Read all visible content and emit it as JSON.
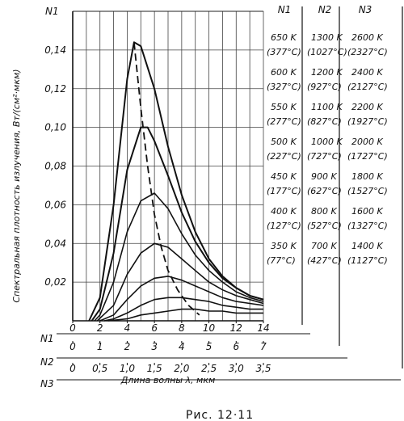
{
  "chart_data": {
    "type": "line",
    "caption": "Рис. 12·11",
    "xlabel": "Длина волны λ, мкм",
    "ylabel": "Спектральная плотность излучения, Вт/(см²·мкм)",
    "y_axis_name": "N1",
    "ylim": [
      0,
      0.16
    ],
    "yticks": [
      "0,02",
      "0,04",
      "0,06",
      "0,08",
      "0,10",
      "0,12",
      "0,14"
    ],
    "xlim": [
      0,
      14
    ],
    "x_axes": [
      {
        "name": "N1",
        "ticks": [
          "0",
          "2",
          "4",
          "6",
          "8",
          "10",
          "12",
          "14"
        ]
      },
      {
        "name": "N2",
        "ticks": [
          "0",
          "1",
          "2",
          "3",
          "4",
          "5",
          "6",
          "7"
        ]
      },
      {
        "name": "N3",
        "ticks": [
          "0",
          "0,5",
          "1,0",
          "1,5",
          "2,0",
          "2,5",
          "3,0",
          "3,5"
        ]
      }
    ],
    "table_headers": [
      "N1",
      "N2",
      "N3"
    ],
    "temperature_rows": [
      [
        [
          "650 K",
          "(377°C)"
        ],
        [
          "1300 K",
          "(1027°C)"
        ],
        [
          "2600 K",
          "(2327°C)"
        ]
      ],
      [
        [
          "600 K",
          "(327°C)"
        ],
        [
          "1200 K",
          "(927°C)"
        ],
        [
          "2400 K",
          "(2127°C)"
        ]
      ],
      [
        [
          "550 K",
          "(277°C)"
        ],
        [
          "1100 K",
          "(827°C)"
        ],
        [
          "2200 K",
          "(1927°C)"
        ]
      ],
      [
        [
          "500 K",
          "(227°C)"
        ],
        [
          "1000 K",
          "(727°C)"
        ],
        [
          "2000 K",
          "(1727°C)"
        ]
      ],
      [
        [
          "450 K",
          "(177°C)"
        ],
        [
          "900 K",
          "(627°C)"
        ],
        [
          "1800 K",
          "(1527°C)"
        ]
      ],
      [
        [
          "400 K",
          "(127°C)"
        ],
        [
          "800 K",
          "(527°C)"
        ],
        [
          "1600 K",
          "(1327°C)"
        ]
      ],
      [
        [
          "350 K",
          "(77°C)"
        ],
        [
          "700 K",
          "(427°C)"
        ],
        [
          "1400 K",
          "(1127°C)"
        ]
      ]
    ],
    "series": [
      {
        "points": [
          [
            1.2,
            0
          ],
          [
            2,
            0.012
          ],
          [
            3,
            0.06
          ],
          [
            4,
            0.125
          ],
          [
            4.5,
            0.144
          ],
          [
            5,
            0.142
          ],
          [
            6,
            0.12
          ],
          [
            7,
            0.09
          ],
          [
            8,
            0.065
          ],
          [
            9,
            0.046
          ],
          [
            10,
            0.032
          ],
          [
            11,
            0.023
          ],
          [
            12,
            0.017
          ],
          [
            13,
            0.013
          ],
          [
            14,
            0.011
          ]
        ]
      },
      {
        "points": [
          [
            1.4,
            0
          ],
          [
            2,
            0.006
          ],
          [
            3,
            0.035
          ],
          [
            4,
            0.078
          ],
          [
            5,
            0.1
          ],
          [
            5.5,
            0.1
          ],
          [
            6,
            0.093
          ],
          [
            7,
            0.075
          ],
          [
            8,
            0.056
          ],
          [
            9,
            0.041
          ],
          [
            10,
            0.03
          ],
          [
            11,
            0.022
          ],
          [
            12,
            0.017
          ],
          [
            13,
            0.013
          ],
          [
            14,
            0.011
          ]
        ]
      },
      {
        "points": [
          [
            1.6,
            0
          ],
          [
            2,
            0.003
          ],
          [
            3,
            0.02
          ],
          [
            4,
            0.046
          ],
          [
            5,
            0.062
          ],
          [
            6,
            0.066
          ],
          [
            7,
            0.058
          ],
          [
            8,
            0.045
          ],
          [
            9,
            0.034
          ],
          [
            10,
            0.026
          ],
          [
            11,
            0.02
          ],
          [
            12,
            0.015
          ],
          [
            13,
            0.012
          ],
          [
            14,
            0.01
          ]
        ]
      },
      {
        "points": [
          [
            1.8,
            0
          ],
          [
            3,
            0.008
          ],
          [
            4,
            0.024
          ],
          [
            5,
            0.035
          ],
          [
            6,
            0.04
          ],
          [
            7,
            0.038
          ],
          [
            8,
            0.032
          ],
          [
            9,
            0.026
          ],
          [
            10,
            0.02
          ],
          [
            11,
            0.016
          ],
          [
            12,
            0.013
          ],
          [
            13,
            0.011
          ],
          [
            14,
            0.009
          ]
        ]
      },
      {
        "points": [
          [
            2,
            0
          ],
          [
            3,
            0.003
          ],
          [
            4,
            0.011
          ],
          [
            5,
            0.018
          ],
          [
            6,
            0.022
          ],
          [
            7,
            0.023
          ],
          [
            8,
            0.021
          ],
          [
            9,
            0.018
          ],
          [
            10,
            0.015
          ],
          [
            11,
            0.012
          ],
          [
            12,
            0.01
          ],
          [
            13,
            0.009
          ],
          [
            14,
            0.008
          ]
        ]
      },
      {
        "points": [
          [
            2.3,
            0
          ],
          [
            3,
            0.001
          ],
          [
            4,
            0.004
          ],
          [
            5,
            0.008
          ],
          [
            6,
            0.011
          ],
          [
            7,
            0.012
          ],
          [
            8,
            0.012
          ],
          [
            9,
            0.011
          ],
          [
            10,
            0.01
          ],
          [
            11,
            0.008
          ],
          [
            12,
            0.007
          ],
          [
            13,
            0.006
          ],
          [
            14,
            0.006
          ]
        ]
      },
      {
        "points": [
          [
            2.6,
            0
          ],
          [
            4,
            0.001
          ],
          [
            5,
            0.003
          ],
          [
            6,
            0.004
          ],
          [
            7,
            0.005
          ],
          [
            8,
            0.006
          ],
          [
            9,
            0.006
          ],
          [
            10,
            0.005
          ],
          [
            11,
            0.005
          ],
          [
            12,
            0.004
          ],
          [
            13,
            0.004
          ],
          [
            14,
            0.004
          ]
        ]
      }
    ],
    "peak_locus": {
      "style": "dashed",
      "points": [
        [
          4.5,
          0.144
        ],
        [
          5,
          0.11
        ],
        [
          5.5,
          0.08
        ],
        [
          6,
          0.055
        ],
        [
          6.5,
          0.038
        ],
        [
          7,
          0.026
        ],
        [
          7.7,
          0.016
        ],
        [
          8.5,
          0.008
        ],
        [
          9.3,
          0.003
        ]
      ]
    }
  }
}
